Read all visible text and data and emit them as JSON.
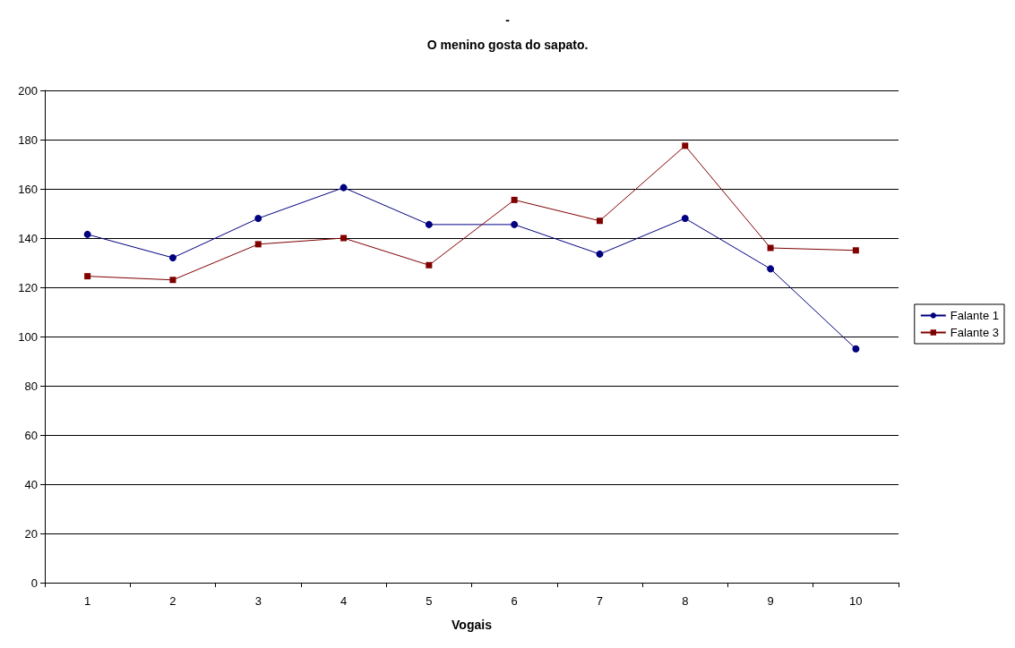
{
  "chart_data": {
    "type": "line",
    "title": "-",
    "subtitle": "O menino gosta do sapato.",
    "xlabel": "Vogais",
    "categories": [
      "1",
      "2",
      "3",
      "4",
      "5",
      "6",
      "7",
      "8",
      "9",
      "10"
    ],
    "series": [
      {
        "name": "Falante 1",
        "color": "#000080",
        "marker": "circle",
        "values": [
          141.5,
          132,
          148,
          160.5,
          145.5,
          145.5,
          133.5,
          148,
          127.5,
          95
        ]
      },
      {
        "name": "Falante 3",
        "color": "#800000",
        "marker": "square",
        "values": [
          124.5,
          123,
          137.5,
          140,
          129,
          155.5,
          147,
          177.5,
          136,
          135
        ]
      }
    ],
    "ylim": [
      0,
      200
    ],
    "yticks": [
      0,
      20,
      40,
      60,
      80,
      100,
      120,
      140,
      160,
      180,
      200
    ],
    "grid": "y",
    "legend": "right",
    "line_style": "solid"
  }
}
